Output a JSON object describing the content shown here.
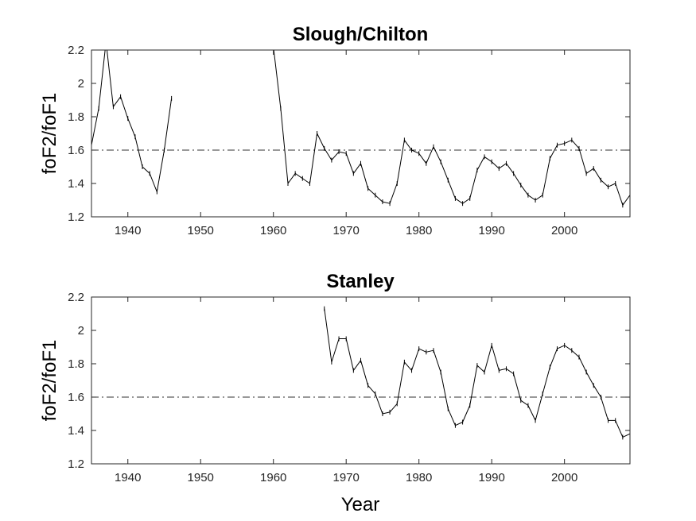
{
  "chart_data": [
    {
      "type": "line",
      "title": "Slough/Chilton",
      "xlabel": "",
      "ylabel": "foF2/foF1",
      "xlim": [
        1935,
        2009
      ],
      "ylim": [
        1.2,
        2.2
      ],
      "xticks": [
        1940,
        1950,
        1960,
        1970,
        1980,
        1990,
        2000
      ],
      "yticks": [
        1.2,
        1.4,
        1.6,
        1.8,
        2,
        2.2
      ],
      "xtick_labels": [
        "1940",
        "1950",
        "1960",
        "1970",
        "1980",
        "1990",
        "2000"
      ],
      "ytick_labels": [
        "1.2",
        "1.4",
        "1.6",
        "1.8",
        "2",
        "2.2"
      ],
      "reference_line": 1.6,
      "grid": false,
      "segments": [
        {
          "x": [
            1935,
            1936,
            1937,
            1938,
            1939,
            1940,
            1941,
            1942,
            1943,
            1944,
            1945,
            1946
          ],
          "y": [
            1.63,
            1.85,
            2.25,
            1.86,
            1.92,
            1.79,
            1.68,
            1.5,
            1.46,
            1.35,
            1.6,
            1.91
          ]
        },
        {
          "x": [
            1960,
            1961,
            1962,
            1963,
            1964,
            1965,
            1966,
            1967,
            1968,
            1969,
            1970,
            1971,
            1972,
            1973,
            1974,
            1975,
            1976,
            1977,
            1978,
            1979,
            1980,
            1981,
            1982,
            1983,
            1984,
            1985,
            1986,
            1987,
            1988,
            1989,
            1990,
            1991,
            1992,
            1993,
            1994,
            1995,
            1996,
            1997,
            1998,
            1999,
            2000,
            2001,
            2002,
            2003,
            2004,
            2005,
            2006,
            2007,
            2008,
            2009
          ],
          "y": [
            2.22,
            1.85,
            1.4,
            1.46,
            1.43,
            1.4,
            1.7,
            1.61,
            1.54,
            1.59,
            1.58,
            1.46,
            1.52,
            1.37,
            1.33,
            1.29,
            1.28,
            1.4,
            1.66,
            1.6,
            1.58,
            1.52,
            1.62,
            1.53,
            1.42,
            1.31,
            1.28,
            1.31,
            1.48,
            1.56,
            1.53,
            1.49,
            1.52,
            1.46,
            1.39,
            1.33,
            1.3,
            1.33,
            1.55,
            1.63,
            1.64,
            1.66,
            1.61,
            1.46,
            1.49,
            1.42,
            1.38,
            1.4,
            1.27,
            1.33
          ]
        }
      ]
    },
    {
      "type": "line",
      "title": "Stanley",
      "xlabel": "Year",
      "ylabel": "foF2/foF1",
      "xlim": [
        1935,
        2009
      ],
      "ylim": [
        1.2,
        2.2
      ],
      "xticks": [
        1940,
        1950,
        1960,
        1970,
        1980,
        1990,
        2000
      ],
      "yticks": [
        1.2,
        1.4,
        1.6,
        1.8,
        2,
        2.2
      ],
      "xtick_labels": [
        "1940",
        "1950",
        "1960",
        "1970",
        "1980",
        "1990",
        "2000"
      ],
      "ytick_labels": [
        "1.2",
        "1.4",
        "1.6",
        "1.8",
        "2",
        "2.2"
      ],
      "reference_line": 1.6,
      "grid": false,
      "segments": [
        {
          "x": [
            1967,
            1968,
            1969,
            1970,
            1971,
            1972,
            1973,
            1974,
            1975,
            1976,
            1977,
            1978,
            1979,
            1980,
            1981,
            1982,
            1983,
            1984,
            1985,
            1986,
            1987,
            1988,
            1989,
            1990,
            1991,
            1992,
            1993,
            1994,
            1995,
            1996,
            1997,
            1998,
            1999,
            2000,
            2001,
            2002,
            2003,
            2004,
            2005,
            2006,
            2007,
            2008,
            2009
          ],
          "y": [
            2.13,
            1.81,
            1.95,
            1.95,
            1.76,
            1.82,
            1.67,
            1.62,
            1.5,
            1.51,
            1.56,
            1.81,
            1.76,
            1.89,
            1.87,
            1.88,
            1.75,
            1.53,
            1.43,
            1.45,
            1.55,
            1.79,
            1.75,
            1.91,
            1.76,
            1.77,
            1.74,
            1.58,
            1.55,
            1.46,
            1.62,
            1.78,
            1.89,
            1.91,
            1.88,
            1.84,
            1.75,
            1.67,
            1.6,
            1.46,
            1.46,
            1.36,
            1.38
          ]
        }
      ]
    }
  ]
}
